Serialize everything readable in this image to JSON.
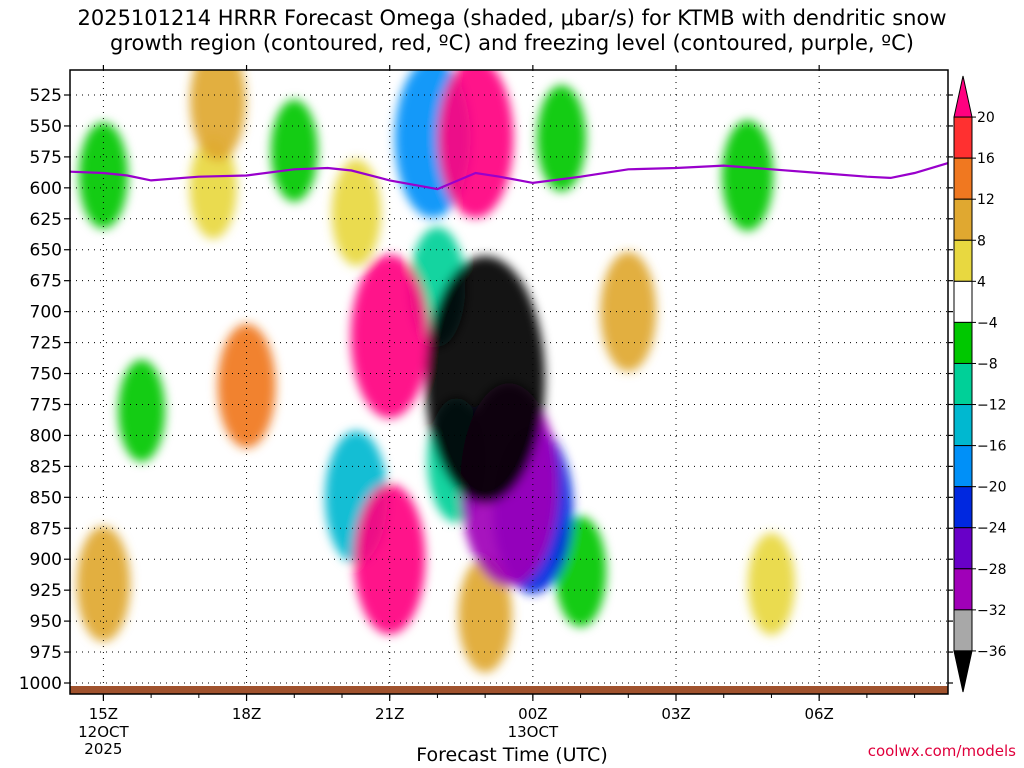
{
  "title_line1": "2025101214 HRRR Forecast Omega (shaded, μbar/s) for KTMB with dendritic snow",
  "title_line2": "growth region (contoured, red, ºC) and freezing level (contoured, purple, ºC)",
  "watermark": "coolwx.com/models",
  "chart_data": {
    "type": "heatmap",
    "title": "2025101214 HRRR Forecast Omega (shaded, μbar/s) for KTMB with dendritic snow growth region (contoured, red, ºC) and freezing level (contoured, purple, ºC)",
    "xlabel": "Forecast Time (UTC)",
    "ylabel": "",
    "y_ticks": [
      525,
      550,
      575,
      600,
      625,
      650,
      675,
      700,
      725,
      750,
      775,
      800,
      825,
      850,
      875,
      900,
      925,
      950,
      975,
      1000
    ],
    "ylim": [
      1000,
      510
    ],
    "x_range_hours": [
      14.3,
      32.7
    ],
    "x_ticks": [
      {
        "label": "15Z",
        "sub": [
          "12OCT",
          "2025"
        ],
        "hour": 15
      },
      {
        "label": "18Z",
        "sub": [],
        "hour": 18
      },
      {
        "label": "21Z",
        "sub": [],
        "hour": 21
      },
      {
        "label": "00Z",
        "sub": [
          "13OCT"
        ],
        "hour": 24
      },
      {
        "label": "03Z",
        "sub": [],
        "hour": 27
      },
      {
        "label": "06Z",
        "sub": [],
        "hour": 30
      }
    ],
    "grid": true,
    "colorbar_labels": [
      "20",
      "16",
      "12",
      "8",
      "4",
      "−4",
      "−8",
      "−12",
      "−16",
      "−20",
      "−24",
      "−28",
      "−32",
      "−36"
    ],
    "colorbar_colors": [
      "#ff0080",
      "#ff3030",
      "#f07820",
      "#e0a830",
      "#e8d840",
      "#ffffff",
      "#00c800",
      "#00d098",
      "#00b8d0",
      "#0090f8",
      "#0028e0",
      "#6800c8",
      "#a000b8",
      "#a8a8a8",
      "#000000"
    ],
    "freezing_level": {
      "color": "#9900cc",
      "hours": [
        14.3,
        15.0,
        15.5,
        16.0,
        17.0,
        18.0,
        19.0,
        19.7,
        20.2,
        21.0,
        22.0,
        22.8,
        23.3,
        24.0,
        25.0,
        26.0,
        27.0,
        28.0,
        29.0,
        30.0,
        31.0,
        31.5,
        32.0,
        32.7
      ],
      "pressure": [
        587,
        588,
        590,
        594,
        591,
        590,
        585,
        584,
        586,
        594,
        601,
        588,
        591,
        596,
        591,
        585,
        584,
        582,
        585,
        588,
        591,
        592,
        588,
        580
      ]
    },
    "omega_field": {
      "units": "μbar/s",
      "sign_convention": "positive = sinking (warm colors), negative = rising (cool colors)",
      "cells": [
        {
          "hour": 15.0,
          "pressure": 590,
          "value": -6
        },
        {
          "hour": 15.0,
          "pressure": 920,
          "value": 8
        },
        {
          "hour": 15.8,
          "pressure": 780,
          "value": -5
        },
        {
          "hour": 17.3,
          "pressure": 600,
          "value": 5
        },
        {
          "hour": 17.4,
          "pressure": 530,
          "value": 9
        },
        {
          "hour": 18.0,
          "pressure": 760,
          "value": 10
        },
        {
          "hour": 19.0,
          "pressure": 570,
          "value": -5
        },
        {
          "hour": 20.3,
          "pressure": 620,
          "value": 6
        },
        {
          "hour": 20.3,
          "pressure": 850,
          "value": -12
        },
        {
          "hour": 21.0,
          "pressure": 720,
          "value": 19
        },
        {
          "hour": 21.0,
          "pressure": 900,
          "value": 16
        },
        {
          "hour": 21.9,
          "pressure": 560,
          "value": -18
        },
        {
          "hour": 22.0,
          "pressure": 680,
          "value": -9
        },
        {
          "hour": 22.8,
          "pressure": 560,
          "value": 18
        },
        {
          "hour": 22.4,
          "pressure": 820,
          "value": -10
        },
        {
          "hour": 23.0,
          "pressure": 755,
          "value": -38
        },
        {
          "hour": 23.5,
          "pressure": 840,
          "value": -28
        },
        {
          "hour": 24.0,
          "pressure": 860,
          "value": -20
        },
        {
          "hour": 23.0,
          "pressure": 945,
          "value": 8
        },
        {
          "hour": 24.6,
          "pressure": 560,
          "value": -6
        },
        {
          "hour": 26.0,
          "pressure": 700,
          "value": 9
        },
        {
          "hour": 25.0,
          "pressure": 910,
          "value": -7
        },
        {
          "hour": 28.5,
          "pressure": 590,
          "value": -7
        },
        {
          "hour": 29.0,
          "pressure": 920,
          "value": 5
        }
      ]
    }
  }
}
